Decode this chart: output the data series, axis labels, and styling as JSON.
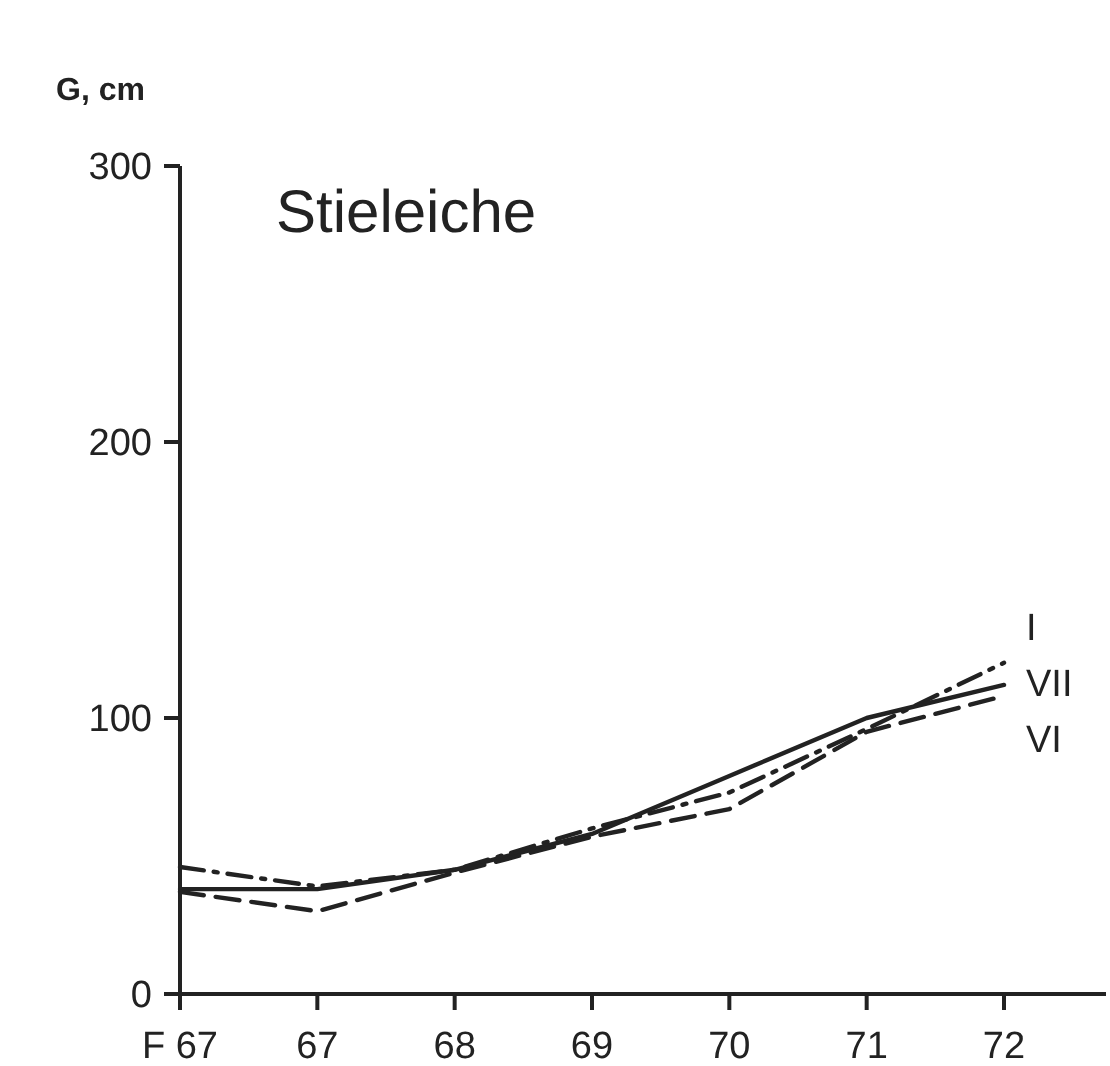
{
  "chart_data": {
    "type": "line",
    "title": "Stieleiche",
    "ylabel": "G, cm",
    "categories": [
      "F 67",
      "67",
      "68",
      "69",
      "70",
      "71",
      "72"
    ],
    "ylim": [
      0,
      300
    ],
    "yticks": [
      0,
      100,
      200,
      300
    ],
    "grid": false,
    "legend": "right",
    "marker": "none",
    "series": [
      {
        "name": "I",
        "color": "#222222",
        "line_style": "dashdot",
        "values": [
          46,
          39,
          45,
          60,
          73,
          96,
          120
        ]
      },
      {
        "name": "VII",
        "color": "#222222",
        "line_style": "solid",
        "values": [
          38,
          38,
          45,
          58,
          79,
          100,
          112
        ]
      },
      {
        "name": "VI",
        "color": "#222222",
        "line_style": "dashed",
        "values": [
          37,
          30,
          44,
          57,
          67,
          95,
          108
        ]
      }
    ]
  }
}
